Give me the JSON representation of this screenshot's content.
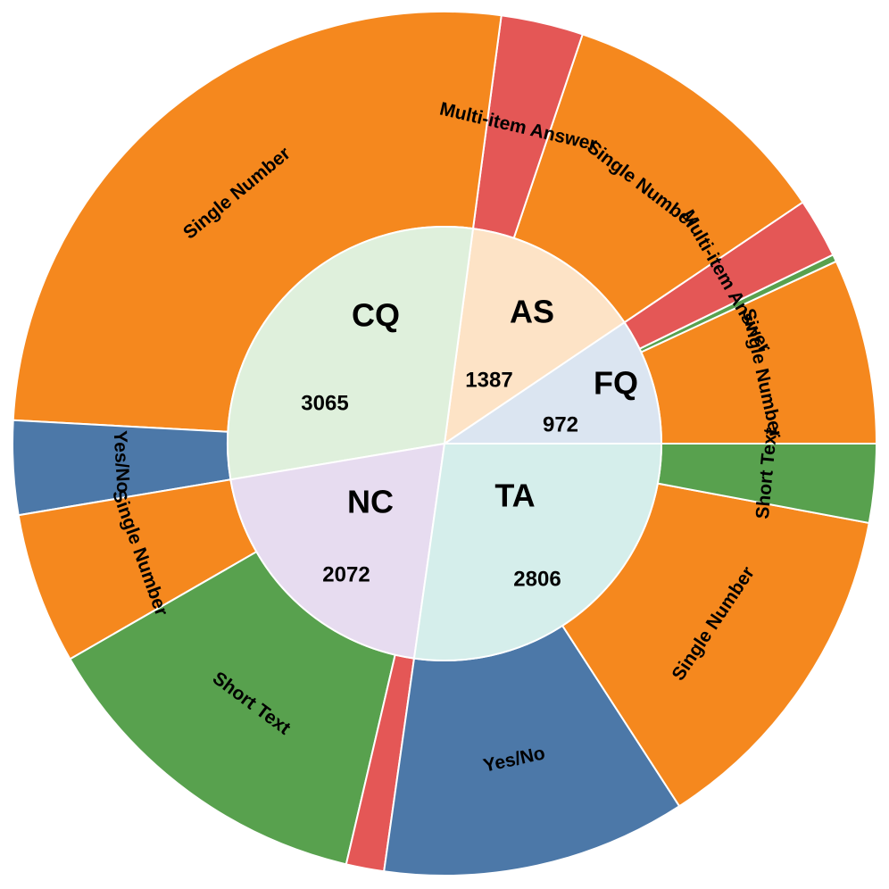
{
  "chart_data": {
    "type": "sunburst",
    "start_angle_deg": 0,
    "direction": "counterclockwise",
    "total": 10302,
    "categories": [
      {
        "name": "FQ",
        "count": "972",
        "value": 972,
        "color": "#dbe5f1",
        "children": [
          {
            "label": "Single Number",
            "value": 714,
            "color": "#f5881e"
          },
          {
            "label": "",
            "value": 28,
            "color": "#58a14e"
          },
          {
            "label": "Multi-item Answer",
            "value": 230,
            "color": "#e45756"
          }
        ]
      },
      {
        "name": "AS",
        "count": "1387",
        "value": 1387,
        "color": "#fde3c6",
        "children": [
          {
            "label": "Single Number",
            "value": 1070,
            "color": "#f5881e"
          },
          {
            "label": "Multi-item Answer",
            "value": 317,
            "color": "#e45756"
          }
        ]
      },
      {
        "name": "CQ",
        "count": "3065",
        "value": 3065,
        "color": "#dff0dc",
        "children": [
          {
            "label": "Single Number",
            "value": 2703,
            "color": "#f5881e"
          },
          {
            "label": "Yes/No",
            "value": 362,
            "color": "#4c78a8"
          }
        ]
      },
      {
        "name": "NC",
        "count": "2072",
        "value": 2072,
        "color": "#e7dcf0",
        "children": [
          {
            "label": "Single Number",
            "value": 583,
            "color": "#f5881e"
          },
          {
            "label": "Short Text",
            "value": 1343,
            "color": "#58a14e"
          },
          {
            "label": "",
            "value": 146,
            "color": "#e45756"
          }
        ]
      },
      {
        "name": "TA",
        "count": "2806",
        "value": 2806,
        "color": "#d5eeeb",
        "children": [
          {
            "label": "Yes/No",
            "value": 1173,
            "color": "#4c78a8"
          },
          {
            "label": "Single Number",
            "value": 1330,
            "color": "#f5881e"
          },
          {
            "label": "Short Text",
            "value": 303,
            "color": "#58a14e"
          }
        ]
      }
    ]
  }
}
